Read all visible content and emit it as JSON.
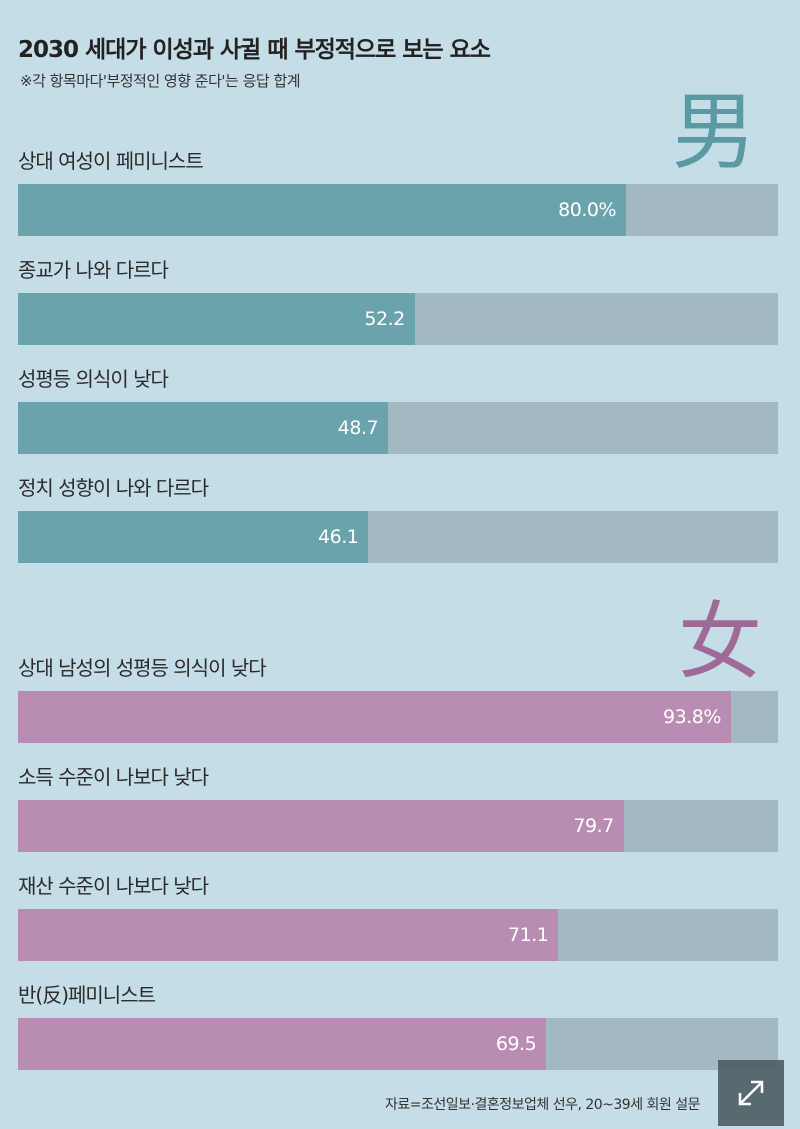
{
  "header": {
    "title": "2030 세대가 이성과 사귈 때 부정적으로 보는 요소",
    "subtitle": "※각 항목마다'부정적인 영향 준다'는 응답 합계"
  },
  "glyphs": {
    "male": "男",
    "female": "女"
  },
  "colors": {
    "background": "#c4dde6",
    "male_bar": "#6aa3ac",
    "female_bar": "#b98db3",
    "track": "#a2b9c2"
  },
  "chart_data": {
    "type": "bar",
    "orientation": "horizontal",
    "unit": "%",
    "xlim": [
      0,
      100
    ],
    "groups": [
      {
        "name": "男",
        "categories": [
          "상대 여성이 페미니스트",
          "종교가 나와 다르다",
          "성평등 의식이 낮다",
          "정치 성향이 나와 다르다"
        ],
        "values": [
          80.0,
          52.2,
          48.7,
          46.1
        ],
        "value_labels": [
          "80.0%",
          "52.2",
          "48.7",
          "46.1"
        ]
      },
      {
        "name": "女",
        "categories": [
          "상대 남성의 성평등 의식이 낮다",
          "소득 수준이 나보다 낮다",
          "재산 수준이 나보다 낮다",
          "반(反)페미니스트"
        ],
        "values": [
          93.8,
          79.7,
          71.1,
          69.5
        ],
        "value_labels": [
          "93.8%",
          "79.7",
          "71.1",
          "69.5"
        ]
      }
    ]
  },
  "footer": {
    "source": "자료=조선일보·결혼정보업체 선우, 20~39세 회원 설문",
    "expand_icon": "expand-icon"
  }
}
